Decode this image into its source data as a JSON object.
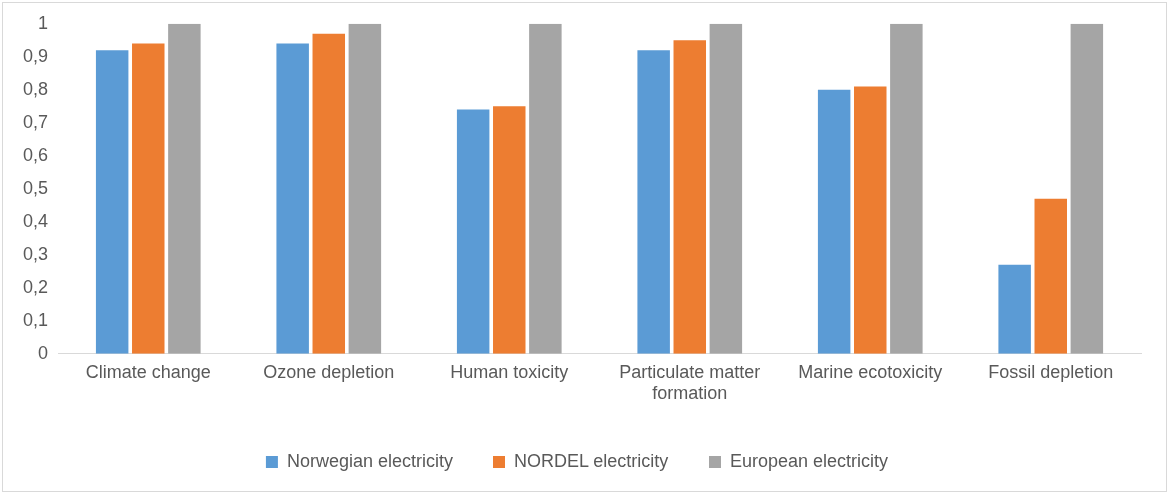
{
  "chart_data": {
    "type": "bar",
    "categories": [
      "Climate change",
      "Ozone depletion",
      "Human toxicity",
      "Particulate matter formation",
      "Marine ecotoxicity",
      "Fossil depletion"
    ],
    "series": [
      {
        "name": "Norwegian electricity",
        "color": "#5b9bd5",
        "values": [
          0.92,
          0.94,
          0.74,
          0.92,
          0.8,
          0.27
        ]
      },
      {
        "name": "NORDEL electricity",
        "color": "#ed7d31",
        "values": [
          0.94,
          0.97,
          0.75,
          0.95,
          0.81,
          0.47
        ]
      },
      {
        "name": "European electricity",
        "color": "#a5a5a5",
        "values": [
          1,
          1,
          1,
          1,
          1,
          1
        ]
      }
    ],
    "ylim": [
      0,
      1
    ],
    "yticks": [
      0,
      {
        "value": 0.1,
        "label": "0,1"
      },
      {
        "value": 0.2,
        "label": "0,2"
      },
      {
        "value": 0.3,
        "label": "0,3"
      },
      {
        "value": 0.4,
        "label": "0,4"
      },
      {
        "value": 0.5,
        "label": "0,5"
      },
      {
        "value": 0.6,
        "label": "0,6"
      },
      {
        "value": 0.7,
        "label": "0,7"
      },
      {
        "value": 0.8,
        "label": "0,8"
      },
      {
        "value": 0.9,
        "label": "0,9"
      },
      1
    ],
    "grid": false,
    "legend": "bottom"
  }
}
